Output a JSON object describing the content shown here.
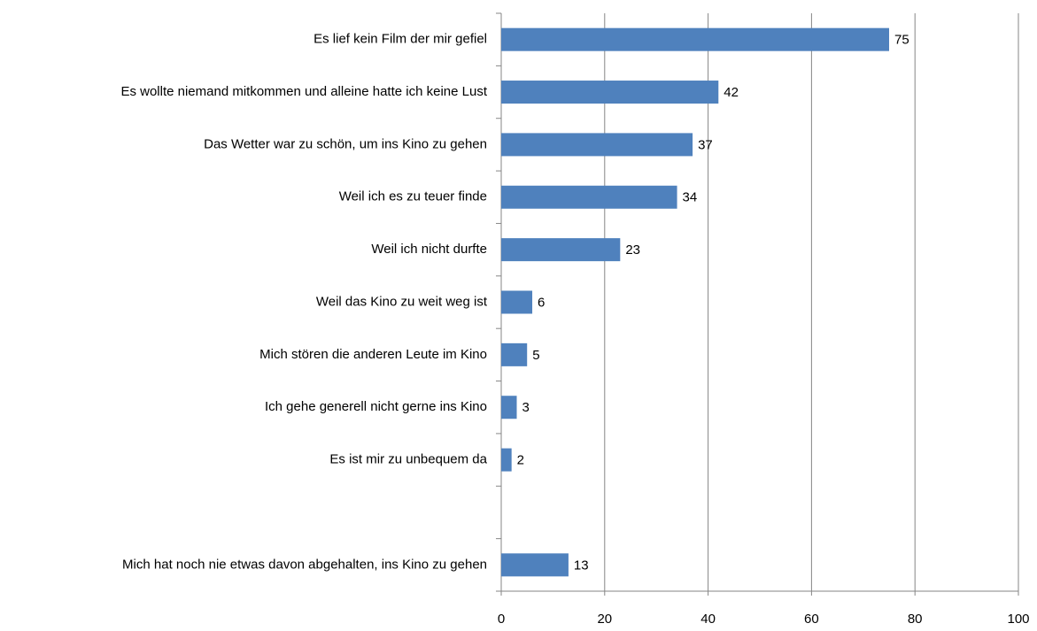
{
  "chart_data": {
    "type": "barh",
    "categories": [
      "Es lief kein Film der mir gefiel",
      "Es wollte niemand mitkommen und alleine hatte ich keine Lust",
      "Das Wetter war zu schön, um ins Kino zu gehen",
      "Weil ich es zu teuer finde",
      "Weil ich nicht durfte",
      "Weil das Kino zu weit weg ist",
      "Mich stören die anderen Leute im Kino",
      "Ich gehe generell nicht gerne ins Kino",
      "Es ist mir zu unbequem da",
      null,
      "Mich hat noch nie etwas davon abgehalten, ins Kino zu gehen"
    ],
    "values": [
      75,
      42,
      37,
      34,
      23,
      6,
      5,
      3,
      2,
      null,
      13
    ],
    "color": "#4f81bd",
    "xlim": [
      0,
      100
    ],
    "xticks": [
      0,
      20,
      40,
      60,
      80,
      100
    ],
    "grid": true
  }
}
